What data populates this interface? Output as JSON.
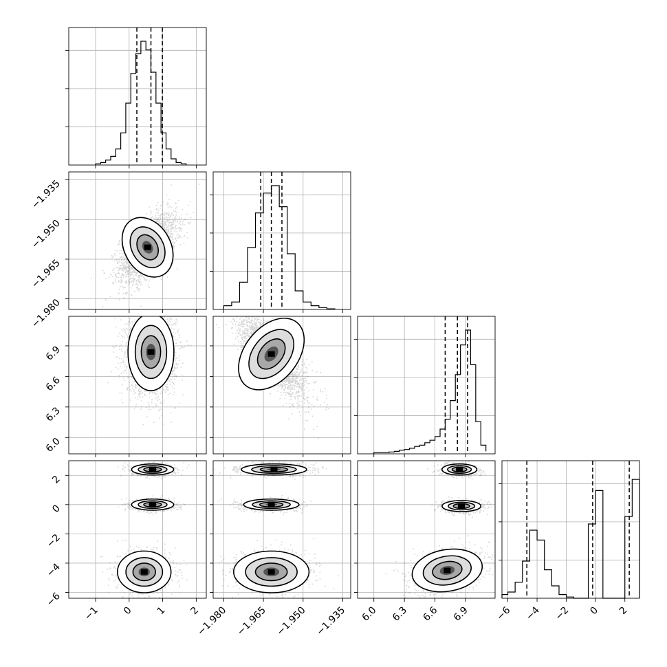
{
  "chart_data": {
    "type": "corner",
    "grid": true,
    "parameters": [
      {
        "name": "",
        "range": [
          -1.8,
          2.3
        ],
        "ticks": [
          -1,
          0,
          1,
          2
        ],
        "tick_labels": [
          "−1",
          "0",
          "1",
          "2"
        ]
      },
      {
        "name": "",
        "range": [
          -1.984,
          -1.932
        ],
        "ticks": [
          -1.98,
          -1.965,
          -1.95,
          -1.935
        ],
        "tick_labels": [
          "−1.980",
          "−1.965",
          "−1.950",
          "−1.935"
        ]
      },
      {
        "name": "",
        "range": [
          5.84,
          7.19
        ],
        "ticks": [
          6.0,
          6.3,
          6.6,
          6.9
        ],
        "tick_labels": [
          "6.0",
          "6.3",
          "6.6",
          "6.9"
        ]
      },
      {
        "name": "",
        "range": [
          -6.4,
          3.0
        ],
        "ticks": [
          -6,
          -4,
          -2,
          0,
          2
        ],
        "tick_labels": [
          "−6",
          "−4",
          "−2",
          "0",
          "2"
        ]
      }
    ],
    "histograms": [
      {
        "edges": [
          -1.0,
          -0.85,
          -0.7,
          -0.55,
          -0.4,
          -0.25,
          -0.1,
          0.05,
          0.2,
          0.35,
          0.5,
          0.65,
          0.8,
          0.95,
          1.1,
          1.25,
          1.4,
          1.55,
          1.7
        ],
        "counts": [
          0.01,
          0.02,
          0.04,
          0.07,
          0.13,
          0.26,
          0.5,
          0.74,
          0.9,
          1.0,
          0.93,
          0.75,
          0.5,
          0.26,
          0.13,
          0.05,
          0.02,
          0.01
        ],
        "quantiles": [
          0.23,
          0.65,
          0.99
        ]
      },
      {
        "edges": [
          -1.98,
          -1.977,
          -1.974,
          -1.971,
          -1.968,
          -1.965,
          -1.962,
          -1.959,
          -1.956,
          -1.953,
          -1.95,
          -1.947,
          -1.944,
          -1.941,
          -1.938
        ],
        "counts": [
          0.03,
          0.06,
          0.22,
          0.5,
          0.78,
          0.94,
          1.0,
          0.83,
          0.45,
          0.15,
          0.06,
          0.03,
          0.015,
          0.005
        ],
        "quantiles": [
          -1.966,
          -1.962,
          -1.958
        ]
      },
      {
        "edges": [
          6.0,
          6.05,
          6.1,
          6.15,
          6.2,
          6.25,
          6.3,
          6.35,
          6.4,
          6.45,
          6.5,
          6.55,
          6.6,
          6.65,
          6.7,
          6.75,
          6.8,
          6.85,
          6.9,
          6.95,
          7.0,
          7.05,
          7.1
        ],
        "counts": [
          0.01,
          0.01,
          0.01,
          0.015,
          0.02,
          0.03,
          0.035,
          0.045,
          0.06,
          0.07,
          0.09,
          0.11,
          0.14,
          0.2,
          0.28,
          0.43,
          0.64,
          0.88,
          1.0,
          0.72,
          0.26,
          0.07,
          0.02
        ],
        "quantiles": [
          6.7,
          6.82,
          6.92
        ]
      },
      {
        "edges": [
          -6.5,
          -6.0,
          -5.5,
          -5.0,
          -4.5,
          -4.0,
          -3.5,
          -3.0,
          -2.5,
          -2.0,
          -1.5,
          -1.0,
          -0.5,
          0.0,
          0.5,
          1.0,
          1.5,
          2.0,
          2.5,
          3.0
        ],
        "counts": [
          0.03,
          0.05,
          0.13,
          0.3,
          0.55,
          0.47,
          0.23,
          0.1,
          0.03,
          0.01,
          0.0,
          0.0,
          0.6,
          0.87,
          0.0,
          0.0,
          0.0,
          0.66,
          0.96
        ],
        "quantiles": [
          -4.7,
          -0.2,
          2.3
        ]
      }
    ],
    "pairs": [
      {
        "x": 0,
        "y": 1,
        "modes": [
          {
            "cx": 0.55,
            "cy": -1.9605,
            "sx": 0.42,
            "sy": 0.0063,
            "rho": 0.55,
            "w": 1.0
          }
        ]
      },
      {
        "x": 0,
        "y": 2,
        "modes": [
          {
            "cx": 0.65,
            "cy": 6.84,
            "sx": 0.36,
            "sy": 0.2,
            "rho": 0.0,
            "w": 1.0
          }
        ]
      },
      {
        "x": 1,
        "y": 2,
        "modes": [
          {
            "cx": -1.962,
            "cy": 6.82,
            "sx": 0.0065,
            "sy": 0.21,
            "rho": -0.75,
            "w": 1.0
          }
        ]
      },
      {
        "x": 0,
        "y": 3,
        "modes": [
          {
            "cx": 0.7,
            "cy": 2.4,
            "sx": 0.33,
            "sy": 0.2,
            "rho": 0.0,
            "w": 0.35
          },
          {
            "cx": 0.7,
            "cy": 0.0,
            "sx": 0.33,
            "sy": 0.2,
            "rho": 0.0,
            "w": 0.3
          },
          {
            "cx": 0.45,
            "cy": -4.6,
            "sx": 0.42,
            "sy": 0.75,
            "rho": 0.0,
            "w": 0.35
          }
        ]
      },
      {
        "x": 1,
        "y": 3,
        "modes": [
          {
            "cx": -1.961,
            "cy": 2.4,
            "sx": 0.0065,
            "sy": 0.2,
            "rho": 0.0,
            "w": 0.35
          },
          {
            "cx": -1.962,
            "cy": 0.0,
            "sx": 0.0055,
            "sy": 0.2,
            "rho": 0.0,
            "w": 0.3
          },
          {
            "cx": -1.962,
            "cy": -4.6,
            "sx": 0.0075,
            "sy": 0.75,
            "rho": 0.0,
            "w": 0.35
          }
        ]
      },
      {
        "x": 2,
        "y": 3,
        "modes": [
          {
            "cx": 6.84,
            "cy": 2.4,
            "sx": 0.09,
            "sy": 0.2,
            "rho": 0.0,
            "w": 0.35
          },
          {
            "cx": 6.86,
            "cy": -0.1,
            "sx": 0.1,
            "sy": 0.2,
            "rho": 0.0,
            "w": 0.3
          },
          {
            "cx": 6.72,
            "cy": -4.5,
            "sx": 0.2,
            "sy": 0.75,
            "rho": 0.35,
            "w": 0.35
          }
        ]
      }
    ]
  }
}
